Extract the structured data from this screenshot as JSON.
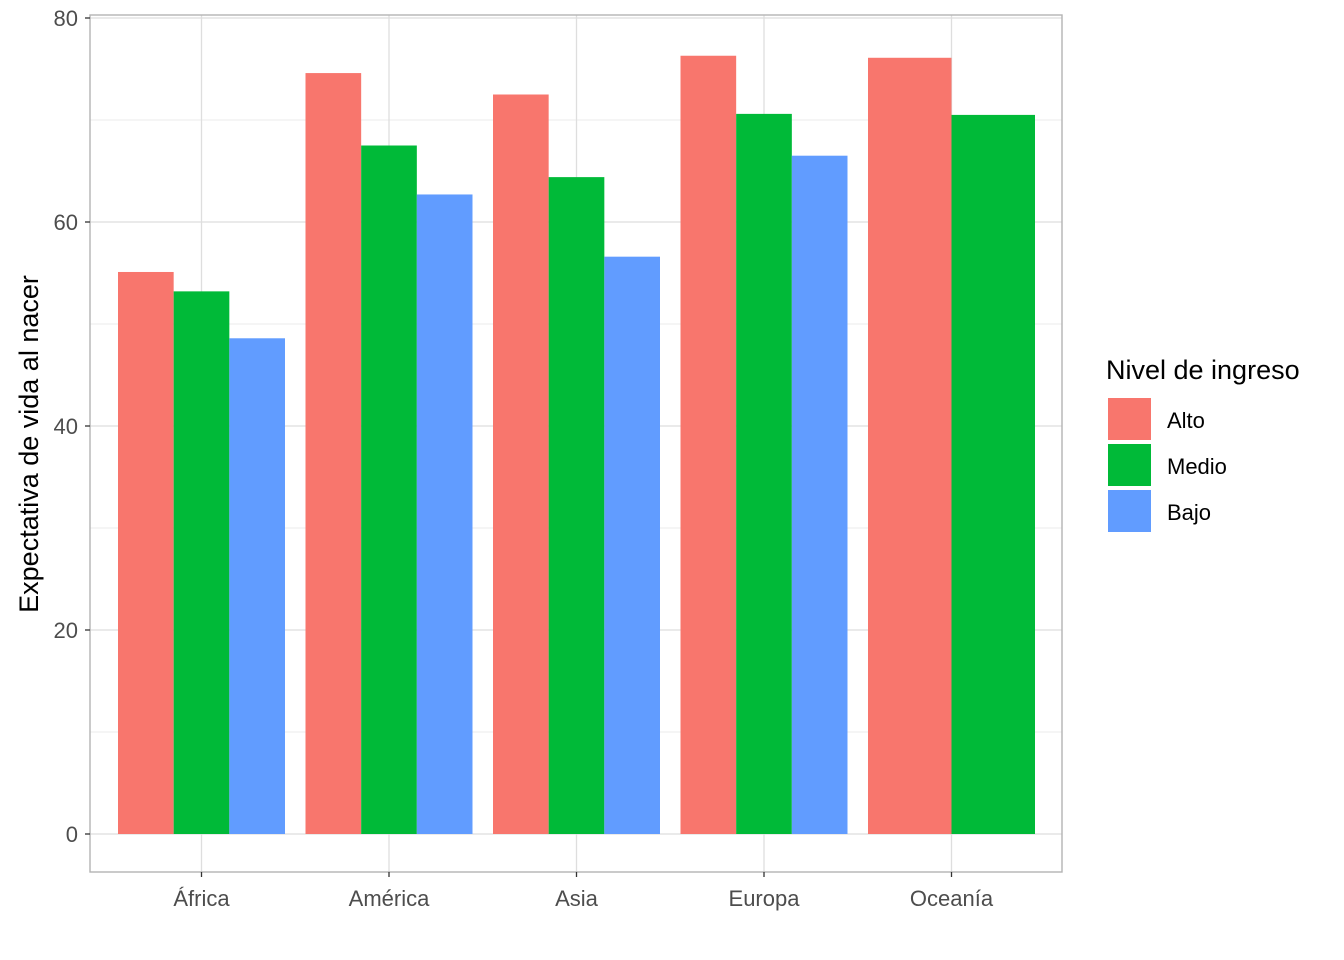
{
  "chart_data": {
    "type": "bar",
    "xlabel": "",
    "ylabel": "Expectativa de vida al nacer",
    "categories": [
      "África",
      "América",
      "Asia",
      "Europa",
      "Oceanía"
    ],
    "series": [
      {
        "name": "Alto",
        "color": "#F8766D",
        "values": [
          55.1,
          74.6,
          72.5,
          76.3,
          76.1
        ]
      },
      {
        "name": "Medio",
        "color": "#00BA38",
        "values": [
          53.2,
          67.5,
          64.4,
          70.6,
          70.5
        ]
      },
      {
        "name": "Bajo",
        "color": "#619CFF",
        "values": [
          48.6,
          62.7,
          56.6,
          66.5,
          null
        ]
      }
    ],
    "ylim": [
      0,
      80
    ],
    "yticks": [
      0,
      20,
      40,
      60,
      80
    ],
    "grid": true,
    "legend": {
      "title": "Nivel de ingreso",
      "position": "right"
    }
  }
}
